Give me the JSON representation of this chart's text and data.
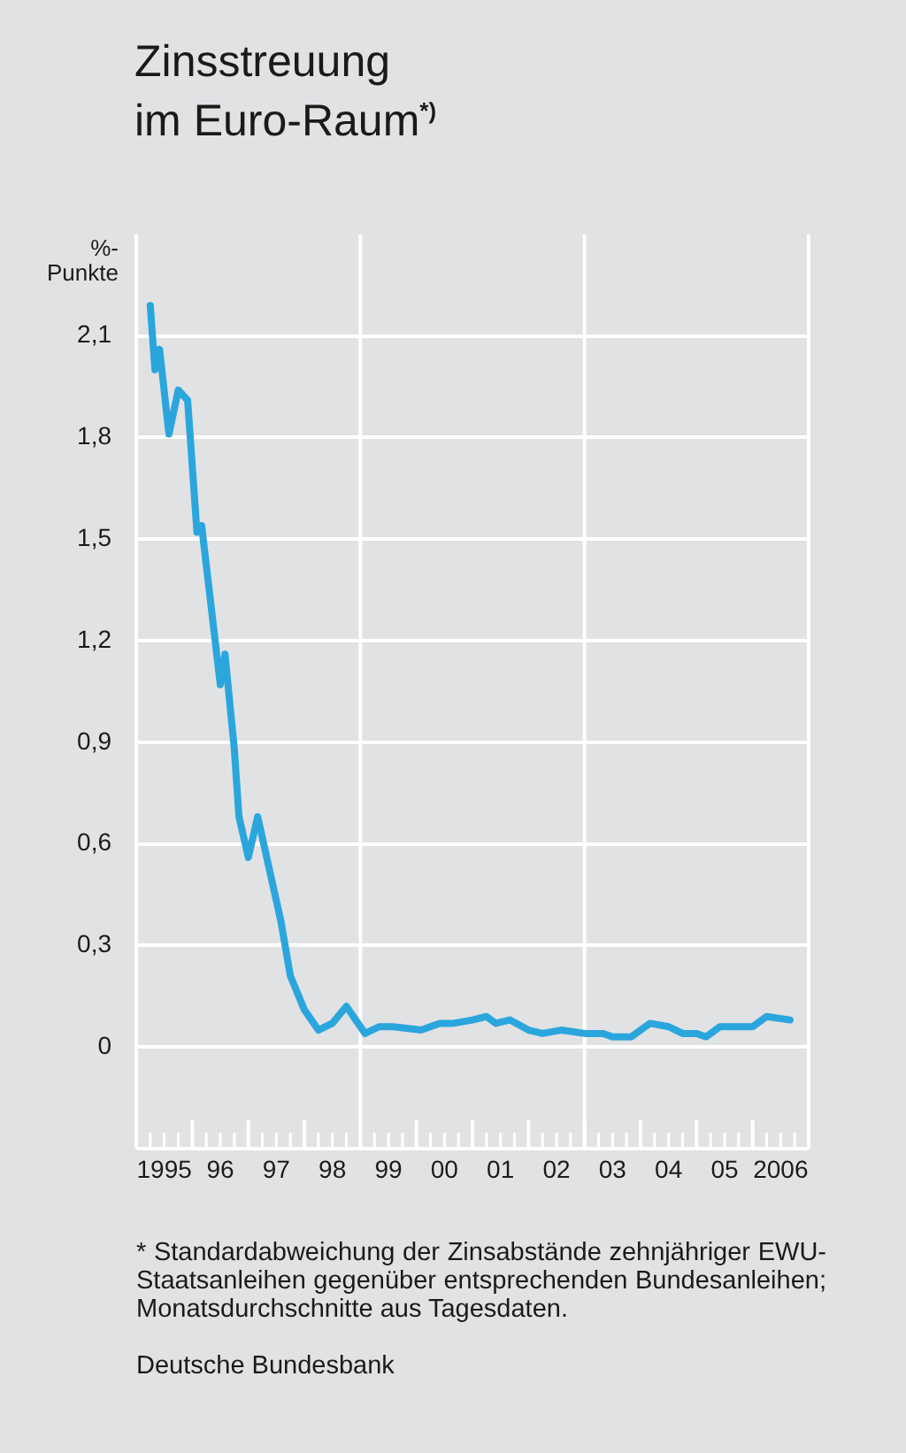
{
  "chart_data": {
    "type": "line",
    "title": "Zinsstreuung\nim Euro-Raum$^{*)}$",
    "ylabel": "%-\nPunkte",
    "x": [
      "1995-04",
      "1995-05",
      "1995-06",
      "1995-08",
      "1995-10",
      "1995-12",
      "1996-02",
      "1996-03",
      "1996-07",
      "1996-08",
      "1996-10",
      "1996-11",
      "1997-01",
      "1997-03",
      "1997-08",
      "1997-10",
      "1998-01",
      "1998-04",
      "1998-07",
      "1998-10",
      "1999-02",
      "1999-05",
      "1999-08",
      "2000-02",
      "2000-06",
      "2000-09",
      "2001-01",
      "2001-04",
      "2001-06",
      "2001-09",
      "2002-01",
      "2002-04",
      "2002-08",
      "2003-01",
      "2003-05",
      "2003-07",
      "2003-11",
      "2004-03",
      "2004-07",
      "2004-10",
      "2005-01",
      "2005-03",
      "2005-06",
      "2006-01",
      "2006-04",
      "2006-09"
    ],
    "series": [
      {
        "color": "#2aa6dd",
        "values": [
          2.19,
          2.0,
          2.06,
          1.81,
          1.94,
          1.91,
          1.52,
          1.54,
          1.07,
          1.16,
          0.88,
          0.68,
          0.56,
          0.68,
          0.37,
          0.21,
          0.11,
          0.05,
          0.07,
          0.12,
          0.04,
          0.06,
          0.06,
          0.05,
          0.07,
          0.07,
          0.08,
          0.09,
          0.07,
          0.08,
          0.05,
          0.04,
          0.05,
          0.04,
          0.04,
          0.03,
          0.03,
          0.07,
          0.06,
          0.04,
          0.04,
          0.03,
          0.06,
          0.06,
          0.09,
          0.08
        ]
      }
    ],
    "xlim": [
      "1995-01",
      "2007-01"
    ],
    "xticks": [
      {
        "value": "1995-01",
        "label": null
      },
      {
        "value": "1995-04",
        "label": null
      },
      {
        "value": "1995-07",
        "label": "1995"
      },
      {
        "value": "1995-10",
        "label": null
      },
      {
        "value": "1996-01",
        "label": null
      },
      {
        "value": "1996-04",
        "label": null
      },
      {
        "value": "1996-07",
        "label": "96"
      },
      {
        "value": "1996-10",
        "label": null
      },
      {
        "value": "1997-01",
        "label": null
      },
      {
        "value": "1997-04",
        "label": null
      },
      {
        "value": "1997-07",
        "label": "97"
      },
      {
        "value": "1997-10",
        "label": null
      },
      {
        "value": "1998-01",
        "label": null
      },
      {
        "value": "1998-04",
        "label": null
      },
      {
        "value": "1998-07",
        "label": "98"
      },
      {
        "value": "1998-10",
        "label": null
      },
      {
        "value": "1999-01",
        "label": null
      },
      {
        "value": "1999-04",
        "label": null
      },
      {
        "value": "1999-07",
        "label": "99"
      },
      {
        "value": "1999-10",
        "label": null
      },
      {
        "value": "2000-01",
        "label": null
      },
      {
        "value": "2000-04",
        "label": null
      },
      {
        "value": "2000-07",
        "label": "00"
      },
      {
        "value": "2000-10",
        "label": null
      },
      {
        "value": "2001-01",
        "label": null
      },
      {
        "value": "2001-04",
        "label": null
      },
      {
        "value": "2001-07",
        "label": "01"
      },
      {
        "value": "2001-10",
        "label": null
      },
      {
        "value": "2002-01",
        "label": null
      },
      {
        "value": "2002-04",
        "label": null
      },
      {
        "value": "2002-07",
        "label": "02"
      },
      {
        "value": "2002-10",
        "label": null
      },
      {
        "value": "2003-01",
        "label": null
      },
      {
        "value": "2003-04",
        "label": null
      },
      {
        "value": "2003-07",
        "label": "03"
      },
      {
        "value": "2003-10",
        "label": null
      },
      {
        "value": "2004-01",
        "label": null
      },
      {
        "value": "2004-04",
        "label": null
      },
      {
        "value": "2004-07",
        "label": "04"
      },
      {
        "value": "2004-10",
        "label": null
      },
      {
        "value": "2005-01",
        "label": null
      },
      {
        "value": "2005-04",
        "label": null
      },
      {
        "value": "2005-07",
        "label": "05"
      },
      {
        "value": "2005-10",
        "label": null
      },
      {
        "value": "2006-01",
        "label": null
      },
      {
        "value": "2006-04",
        "label": null
      },
      {
        "value": "2006-07",
        "label": "2006"
      },
      {
        "value": "2006-10",
        "label": null
      },
      {
        "value": "2007-01",
        "label": null
      }
    ],
    "ylim": [
      -0.3,
      2.4
    ],
    "yticks": [
      {
        "value": 0,
        "label": "0"
      },
      {
        "value": 0.3,
        "label": "0,3"
      },
      {
        "value": 0.6,
        "label": "0,6"
      },
      {
        "value": 0.9,
        "label": "0,9"
      },
      {
        "value": 1.2,
        "label": "1,2"
      },
      {
        "value": 1.5,
        "label": "1,5"
      },
      {
        "value": 1.8,
        "label": "1,8"
      },
      {
        "value": 2.1,
        "label": "2,1"
      }
    ],
    "ref_lines": [
      {
        "axis": "x",
        "value": "1999-01",
        "color": "#ffffff"
      },
      {
        "axis": "x",
        "value": "2003-01",
        "color": "#ffffff"
      }
    ],
    "grid": "y",
    "marker": "none",
    "line_style": "solid",
    "legend": false,
    "annotations": [
      "* Standardabweichung der Zinsabstände zehnjähriger EWU-Staatsanleihen gegenüber entsprechenden Bundesanleihen; Monatsdurchschnitte aus Tagesdaten.",
      "Deutsche Bundesbank"
    ]
  }
}
